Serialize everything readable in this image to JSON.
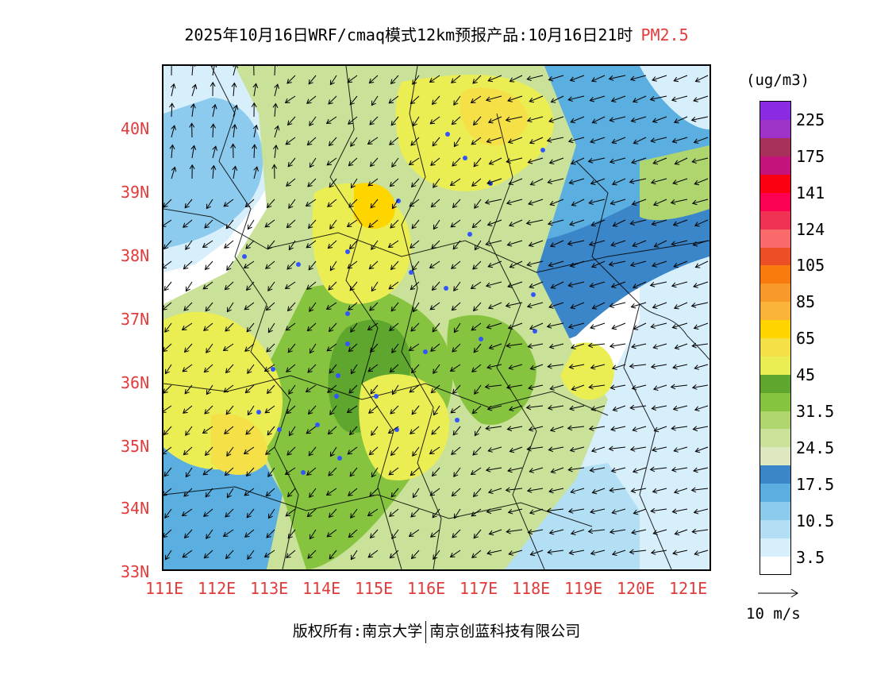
{
  "title": {
    "main": "2025年10月16日WRF/cmaq模式12km预报产品:10月16日21时",
    "pollutant": "PM2.5"
  },
  "axes": {
    "lat_labels": [
      "40N",
      "39N",
      "38N",
      "37N",
      "36N",
      "35N",
      "34N",
      "33N"
    ],
    "lon_labels": [
      "111E",
      "112E",
      "113E",
      "114E",
      "115E",
      "116E",
      "117E",
      "118E",
      "119E",
      "120E",
      "121E"
    ]
  },
  "colorbar": {
    "unit": "(ug/m3)",
    "colors": [
      "#ffffff",
      "#d7eefb",
      "#b3dff5",
      "#8ccbee",
      "#5aaee0",
      "#3b86c8",
      "#dde8c0",
      "#c9e199",
      "#afd56f",
      "#86c43f",
      "#5ea62d",
      "#eaee53",
      "#f5e048",
      "#ffd500",
      "#fbb43a",
      "#f79a2a",
      "#f97a0e",
      "#ec4f25",
      "#f96b6b",
      "#ef3254",
      "#fc0051",
      "#fb0010",
      "#c4147b",
      "#a8315b",
      "#9d33c8",
      "#8a2be2"
    ],
    "labels": [
      "3.5",
      "10.5",
      "17.5",
      "24.5",
      "31.5",
      "45",
      "65",
      "85",
      "105",
      "124",
      "141",
      "175",
      "225"
    ]
  },
  "wind": {
    "label": "10 m/s"
  },
  "footer": {
    "copyright_label": "版权所有:",
    "owner1": "南京大学",
    "owner2": "南京创蓝科技有限公司"
  }
}
